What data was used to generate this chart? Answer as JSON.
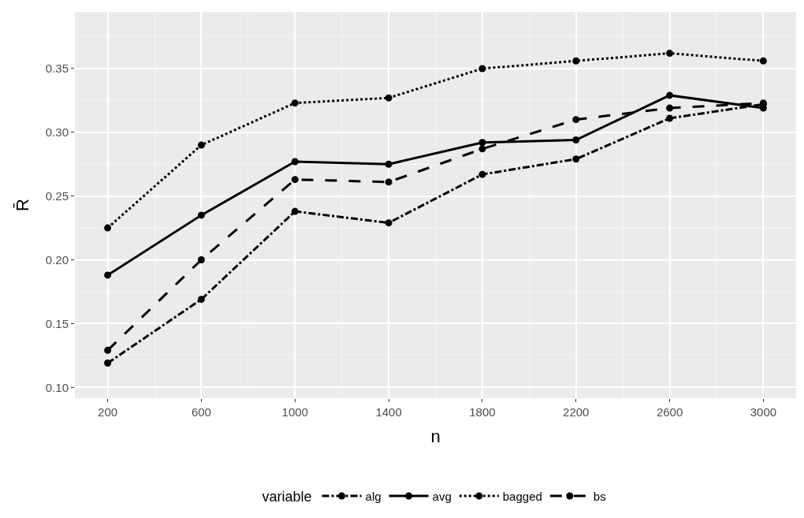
{
  "chart_data": {
    "type": "line",
    "xlabel": "n",
    "ylabel": "R̄",
    "legend_title": "variable",
    "x": [
      200,
      600,
      1000,
      1400,
      1800,
      2200,
      2600,
      3000
    ],
    "series": [
      {
        "name": "alg",
        "color": "#000000",
        "line_style": "dashdot",
        "values": [
          0.119,
          0.169,
          0.238,
          0.229,
          0.267,
          0.279,
          0.311,
          0.322
        ]
      },
      {
        "name": "avg",
        "color": "#000000",
        "line_style": "solid",
        "values": [
          0.188,
          0.235,
          0.277,
          0.275,
          0.292,
          0.294,
          0.329,
          0.319
        ]
      },
      {
        "name": "bagged",
        "color": "#000000",
        "line_style": "dotted",
        "values": [
          0.225,
          0.29,
          0.323,
          0.327,
          0.35,
          0.356,
          0.362,
          0.356
        ]
      },
      {
        "name": "bs",
        "color": "#000000",
        "line_style": "longdash",
        "values": [
          0.129,
          0.2,
          0.263,
          0.261,
          0.287,
          0.31,
          0.319,
          0.323
        ]
      }
    ],
    "xlim": [
      60,
      3140
    ],
    "xticks": [
      200,
      600,
      1000,
      1400,
      1800,
      2200,
      2600,
      3000
    ],
    "ylim": [
      0.0915,
      0.3945
    ],
    "yticks": [
      {
        "value": 0.1,
        "label": "0.10"
      },
      0.15,
      {
        "value": 0.2,
        "label": "0.20"
      },
      0.25,
      {
        "value": 0.3,
        "label": "0.30"
      },
      0.35
    ],
    "grid": true,
    "legend": "bottom",
    "marker": "circle"
  }
}
